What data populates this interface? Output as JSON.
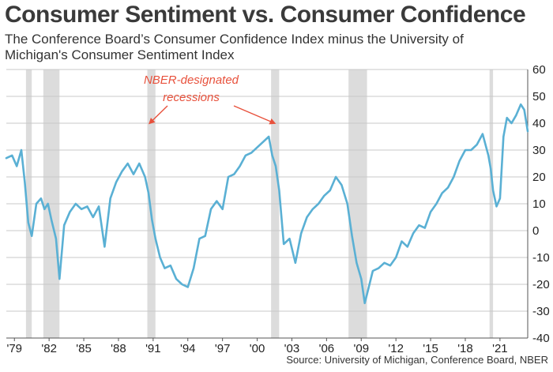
{
  "chart_data": {
    "type": "line",
    "title": "Consumer Sentiment vs. Consumer Confidence",
    "subtitle": "The Conference Board’s Consumer Confidence Index minus the University of Michigan's Consumer Sentiment Index",
    "source": "Source: University of Michigan, Conference Board, NBER",
    "annotation": "NBER-designated recessions",
    "annotation_lines": [
      "NBER-designated",
      "recessions"
    ],
    "xlabel": "",
    "ylabel": "",
    "xlim": [
      1978.3,
      2023.4
    ],
    "ylim": [
      -40,
      60
    ],
    "grid": true,
    "y_axis_side": "right",
    "y_ticks": [
      -40,
      -30,
      -20,
      -10,
      0,
      10,
      20,
      30,
      40,
      50,
      60
    ],
    "x_ticks": [
      1979,
      1982,
      1985,
      1988,
      1991,
      1994,
      1997,
      2000,
      2003,
      2006,
      2009,
      2012,
      2015,
      2018,
      2021
    ],
    "x_tick_labels": [
      "'79",
      "'82",
      "'85",
      "'88",
      "'91",
      "'94",
      "'97",
      "'00",
      "'03",
      "'06",
      "'09",
      "'12",
      "'15",
      "'18",
      "'21"
    ],
    "line_color": "#5ab0d4",
    "recession_color": "#dcdcdc",
    "annotation_color": "#e8513c",
    "recessions": [
      {
        "start": 1980.0,
        "end": 1980.5
      },
      {
        "start": 1981.5,
        "end": 1982.9
      },
      {
        "start": 1990.5,
        "end": 1991.2
      },
      {
        "start": 2001.2,
        "end": 2001.9
      },
      {
        "start": 2007.9,
        "end": 2009.5
      },
      {
        "start": 2020.1,
        "end": 2020.4
      }
    ],
    "series": [
      {
        "x": [
          1978.3,
          1978.8,
          1979.2,
          1979.6,
          1979.9,
          1980.2,
          1980.5,
          1980.9,
          1981.3,
          1981.6,
          1981.9,
          1982.2,
          1982.6,
          1982.9,
          1983.3,
          1983.8,
          1984.3,
          1984.8,
          1985.3,
          1985.8,
          1986.3,
          1986.8,
          1987.3,
          1987.8,
          1988.3,
          1988.8,
          1989.3,
          1989.8,
          1990.3,
          1990.6,
          1990.9,
          1991.2,
          1991.6,
          1992.0,
          1992.5,
          1993.0,
          1993.5,
          1994.0,
          1994.5,
          1995.0,
          1995.5,
          1996.0,
          1996.5,
          1997.0,
          1997.5,
          1998.0,
          1998.5,
          1999.0,
          1999.5,
          2000.0,
          2000.5,
          2001.0,
          2001.3,
          2001.6,
          2001.9,
          2002.3,
          2002.8,
          2003.3,
          2003.8,
          2004.3,
          2004.8,
          2005.3,
          2005.8,
          2006.3,
          2006.8,
          2007.3,
          2007.8,
          2008.2,
          2008.6,
          2009.0,
          2009.3,
          2009.6,
          2010.0,
          2010.5,
          2011.0,
          2011.5,
          2012.0,
          2012.5,
          2013.0,
          2013.5,
          2014.0,
          2014.5,
          2015.0,
          2015.5,
          2016.0,
          2016.5,
          2017.0,
          2017.5,
          2018.0,
          2018.5,
          2019.0,
          2019.5,
          2020.0,
          2020.2,
          2020.4,
          2020.7,
          2021.0,
          2021.3,
          2021.6,
          2022.0,
          2022.4,
          2022.8,
          2023.1,
          2023.4
        ],
        "values": [
          27,
          28,
          24,
          30,
          18,
          3,
          -2,
          10,
          12,
          8,
          10,
          4,
          -3,
          -18,
          2,
          7,
          10,
          8,
          9,
          5,
          9,
          -6,
          12,
          18,
          22,
          25,
          21,
          25,
          20,
          14,
          4,
          -3,
          -10,
          -14,
          -13,
          -18,
          -20,
          -21,
          -14,
          -3,
          -2,
          8,
          11,
          8,
          20,
          21,
          24,
          28,
          29,
          31,
          33,
          35,
          28,
          24,
          15,
          -5,
          -3,
          -12,
          -1,
          5,
          8,
          10,
          13,
          15,
          20,
          17,
          10,
          -2,
          -12,
          -18,
          -27,
          -22,
          -15,
          -14,
          -12,
          -13,
          -10,
          -4,
          -6,
          -1,
          2,
          1,
          7,
          10,
          14,
          16,
          20,
          26,
          30,
          30,
          32,
          36,
          28,
          23,
          15,
          9,
          12,
          35,
          42,
          40,
          43,
          47,
          45,
          37
        ]
      }
    ]
  }
}
